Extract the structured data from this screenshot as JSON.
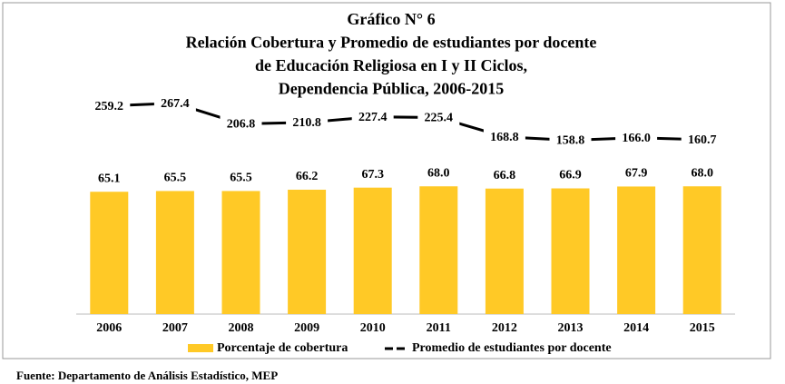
{
  "chart_data": {
    "type": "bar_line",
    "title": [
      "Gráfico N° 6",
      "Relación Cobertura y Promedio de estudiantes por docente",
      "de Educación Religiosa en I y II Ciclos,",
      "Dependencia Pública, 2006-2015"
    ],
    "categories": [
      "2006",
      "2007",
      "2008",
      "2009",
      "2010",
      "2011",
      "2012",
      "2013",
      "2014",
      "2015"
    ],
    "series": [
      {
        "name": "Porcentaje de cobertura",
        "color": "#ffc926",
        "type": "bar",
        "values": [
          65.1,
          65.5,
          65.5,
          66.2,
          67.3,
          68,
          66.8,
          66.9,
          67.9,
          68
        ],
        "value_labels": [
          "65.1",
          "65.5",
          "65.5",
          "66.2",
          "67.3",
          "68.0",
          "66.8",
          "66.9",
          "67.9",
          "68.0"
        ]
      },
      {
        "name": "Promedio de estudiantes por docente",
        "color": "#000000",
        "type": "line",
        "axis": "y2",
        "values": [
          259.2,
          267.4,
          206.8,
          210.8,
          227.4,
          225.4,
          168.8,
          158.8,
          166,
          160.7
        ],
        "value_labels": [
          "259.2",
          "267.4",
          "206.8",
          "210.8",
          "227.4",
          "225.4",
          "168.8",
          "158.8",
          "166.0",
          "160.7"
        ]
      }
    ],
    "ylim": [
      0,
      100
    ],
    "y2lim": [
      -350,
      200
    ],
    "source": "Fuente: Departamento de Análisis Estadístico, MEP"
  }
}
